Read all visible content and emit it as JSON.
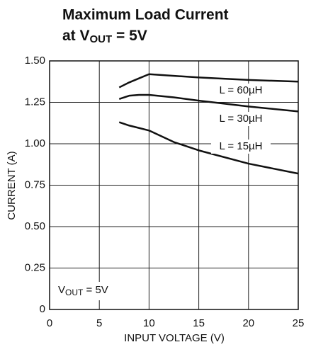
{
  "chart_data": {
    "type": "line",
    "title": "Maximum Load Current",
    "subtitle": [
      "at V",
      "OUT",
      " = 5V"
    ],
    "annotation": [
      "V",
      "OUT",
      " = 5V"
    ],
    "xlabel": "INPUT VOLTAGE (V)",
    "ylabel": "CURRENT (A)",
    "xlim": [
      0,
      25
    ],
    "ylim": [
      0,
      1.5
    ],
    "xticks": [
      0,
      5,
      10,
      15,
      20,
      25
    ],
    "yticks": [
      0,
      0.25,
      {
        "value": 0.5,
        "label": "0.50"
      },
      0.75,
      {
        "value": 1,
        "label": "1.00"
      },
      1.25,
      {
        "value": 1.5,
        "label": "1.50"
      }
    ],
    "grid": true,
    "series": [
      {
        "name": "L = 60µH",
        "color": "#111111",
        "x": [
          7,
          8,
          9,
          10,
          15,
          20,
          25
        ],
        "values": [
          1.34,
          1.37,
          1.395,
          1.42,
          1.4,
          1.385,
          1.375
        ]
      },
      {
        "name": "L = 30µH",
        "color": "#111111",
        "x": [
          7,
          8,
          9,
          10,
          12.5,
          15,
          20,
          25
        ],
        "values": [
          1.27,
          1.29,
          1.295,
          1.295,
          1.28,
          1.26,
          1.225,
          1.195
        ]
      },
      {
        "name": "L = 15µH",
        "color": "#111111",
        "x": [
          7,
          8,
          9,
          10,
          12.5,
          15,
          20,
          25
        ],
        "values": [
          1.13,
          1.11,
          1.095,
          1.08,
          1.01,
          0.96,
          0.88,
          0.82
        ]
      }
    ]
  }
}
